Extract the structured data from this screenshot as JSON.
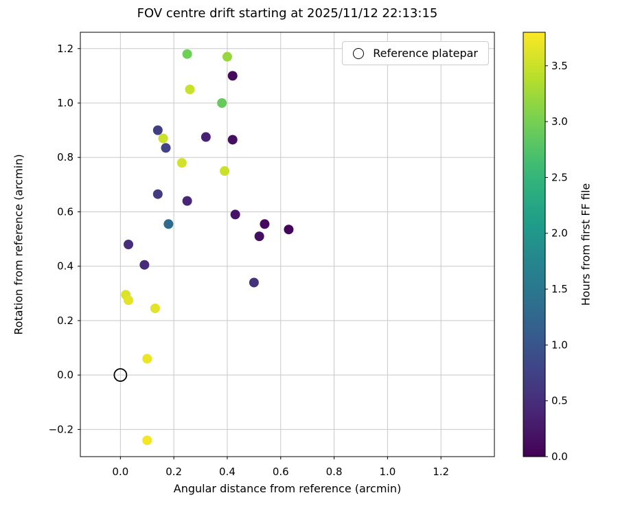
{
  "figure": {
    "title": "FOV centre drift starting at 2025/11/12 22:13:15"
  },
  "chart_data": {
    "type": "scatter",
    "title": "FOV centre drift starting at 2025/11/12 22:13:15",
    "xlabel": "Angular distance from reference (arcmin)",
    "ylabel": "Rotation from reference (arcmin)",
    "colorbar_label": "Hours from first FF file",
    "grid": true,
    "xlim": [
      -0.15,
      1.4
    ],
    "ylim": [
      -0.3,
      1.26
    ],
    "xticks": [
      0.0,
      0.2,
      0.4,
      0.6,
      0.8,
      1.0,
      1.2
    ],
    "yticks": [
      -0.2,
      0.0,
      0.2,
      0.4,
      0.6,
      0.8,
      1.0,
      1.2
    ],
    "colorbar": {
      "min": 0.0,
      "max": 3.8,
      "ticks": [
        0.0,
        0.5,
        1.0,
        1.5,
        2.0,
        2.5,
        3.0,
        3.5
      ],
      "colormap": "viridis"
    },
    "legend": {
      "label": "Reference platepar",
      "position": "upper right"
    },
    "reference_point": {
      "x": 0.0,
      "y": 0.0
    },
    "points": [
      {
        "x": 0.25,
        "y": 1.18,
        "hours": 2.95
      },
      {
        "x": 0.4,
        "y": 1.17,
        "hours": 3.2
      },
      {
        "x": 0.42,
        "y": 1.1,
        "hours": 0.1
      },
      {
        "x": 0.26,
        "y": 1.05,
        "hours": 3.5
      },
      {
        "x": 0.38,
        "y": 1.0,
        "hours": 2.9
      },
      {
        "x": 0.14,
        "y": 0.9,
        "hours": 0.7
      },
      {
        "x": 0.16,
        "y": 0.87,
        "hours": 3.5
      },
      {
        "x": 0.32,
        "y": 0.875,
        "hours": 0.35
      },
      {
        "x": 0.42,
        "y": 0.865,
        "hours": 0.15
      },
      {
        "x": 0.17,
        "y": 0.835,
        "hours": 0.75
      },
      {
        "x": 0.23,
        "y": 0.78,
        "hours": 3.55
      },
      {
        "x": 0.39,
        "y": 0.75,
        "hours": 3.5
      },
      {
        "x": 0.14,
        "y": 0.665,
        "hours": 0.65
      },
      {
        "x": 0.25,
        "y": 0.64,
        "hours": 0.4
      },
      {
        "x": 0.43,
        "y": 0.59,
        "hours": 0.2
      },
      {
        "x": 0.18,
        "y": 0.555,
        "hours": 1.3
      },
      {
        "x": 0.54,
        "y": 0.555,
        "hours": 0.1
      },
      {
        "x": 0.52,
        "y": 0.51,
        "hours": 0.15
      },
      {
        "x": 0.63,
        "y": 0.535,
        "hours": 0.05
      },
      {
        "x": 0.03,
        "y": 0.48,
        "hours": 0.5
      },
      {
        "x": 0.09,
        "y": 0.405,
        "hours": 0.45
      },
      {
        "x": 0.5,
        "y": 0.34,
        "hours": 0.55
      },
      {
        "x": 0.02,
        "y": 0.295,
        "hours": 3.6
      },
      {
        "x": 0.03,
        "y": 0.275,
        "hours": 3.65
      },
      {
        "x": 0.13,
        "y": 0.245,
        "hours": 3.65
      },
      {
        "x": 0.1,
        "y": 0.06,
        "hours": 3.7
      },
      {
        "x": 0.1,
        "y": -0.24,
        "hours": 3.75
      }
    ]
  }
}
